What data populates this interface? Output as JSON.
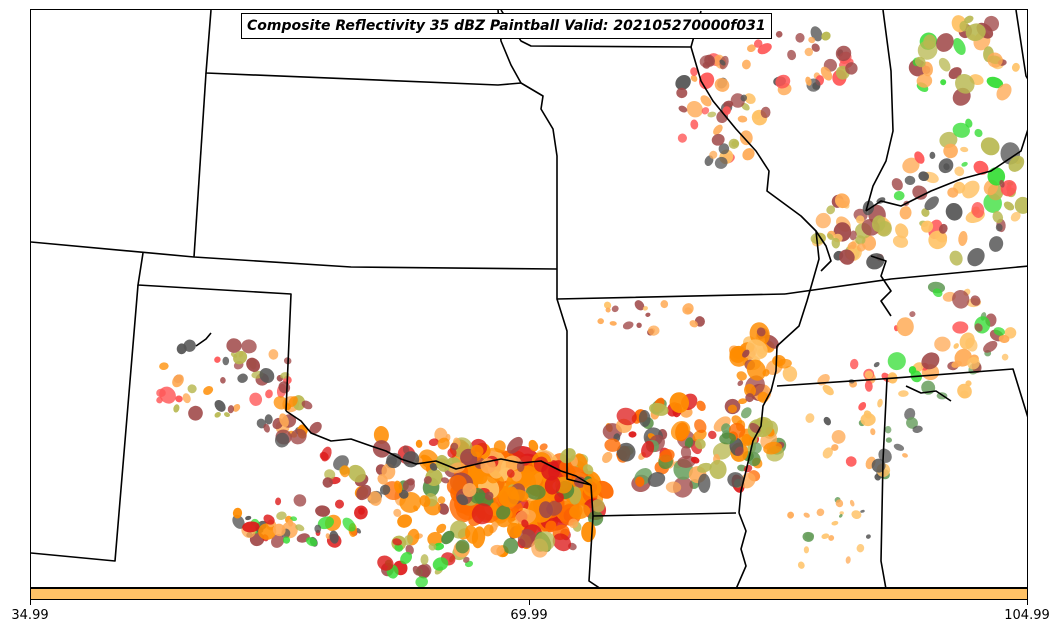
{
  "title": "Composite Reflectivity 35 dBZ Paintball Valid: 202105270000f031",
  "colorbar": {
    "color": "#ffc266",
    "ticks": [
      "34.99",
      "69.99",
      "104.99"
    ]
  },
  "member_colors": [
    "#ff8c00",
    "#ff6a00",
    "#dd1a1a",
    "#a04848",
    "#ff5555",
    "#ffaa55",
    "#ffc266",
    "#b8b850",
    "#4d8a3a",
    "#6aa060",
    "#33dd33",
    "#555555"
  ]
}
